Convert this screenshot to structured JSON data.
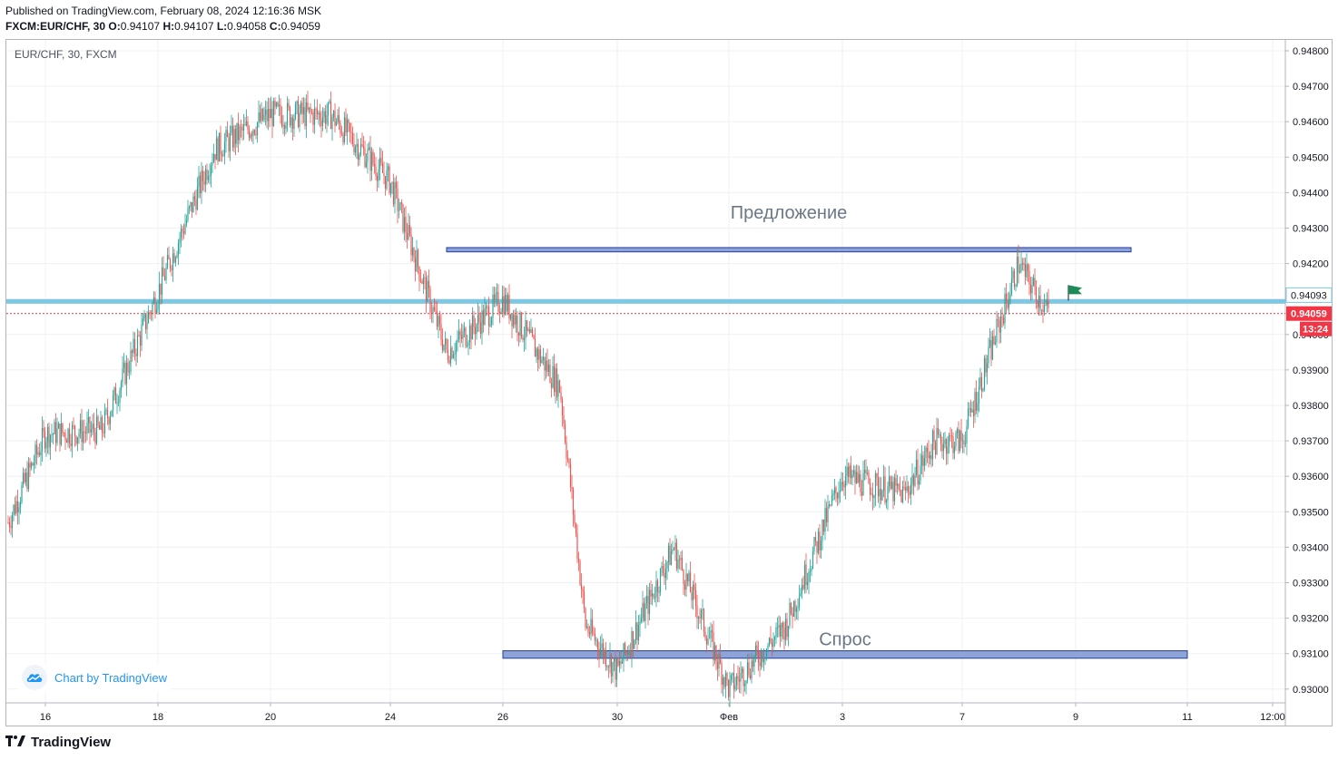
{
  "header": {
    "published_line": "Published on TradingView.com, February 08, 2024 12:16:36 MSK",
    "symbol_line": "FXCM:EUR/CHF, 30",
    "o_label": "O:",
    "o_value": "0.94107",
    "h_label": "H:",
    "h_value": "0.94107",
    "l_label": "L:",
    "l_value": "0.94058",
    "c_label": "C:",
    "c_value": "0.94059"
  },
  "legend_symbol": "EUR/CHF, 30, FXCM",
  "watermark_text": "Chart by TradingView",
  "footer_brand": "TradingView",
  "colors": {
    "up": "#26a69a",
    "down": "#ef5350",
    "zone_fill": "#8ea3d6",
    "zone_border": "#1f3c9f",
    "level_line": "#7ec8e3",
    "last_price": "#f23645",
    "flag": "#1e8a5c"
  },
  "chart_data": {
    "type": "candlestick",
    "symbol": "EUR/CHF",
    "interval": "30",
    "ylim": [
      0.9295,
      0.9483
    ],
    "y_ticks": [
      "0.94800",
      "0.94700",
      "0.94600",
      "0.94500",
      "0.94400",
      "0.94300",
      "0.94200",
      "0.94100",
      "0.94000",
      "0.93900",
      "0.93800",
      "0.93700",
      "0.93600",
      "0.93500",
      "0.93400",
      "0.93300",
      "0.93200",
      "0.93100",
      "0.93000"
    ],
    "x_ticks": [
      "16",
      "18",
      "20",
      "24",
      "26",
      "30",
      "Фев",
      "3",
      "7",
      "9",
      "11",
      "12:00"
    ],
    "path_keypoints": [
      {
        "at": "15 Jan",
        "price": 0.9347
      },
      {
        "at": "16 Jan",
        "price": 0.9372
      },
      {
        "at": "17 Jan",
        "price": 0.9373
      },
      {
        "at": "18 Jan",
        "price": 0.9412
      },
      {
        "at": "19 Jan",
        "price": 0.9452
      },
      {
        "at": "20 Jan",
        "price": 0.9462
      },
      {
        "at": "22 Jan",
        "price": 0.9462
      },
      {
        "at": "24 Jan",
        "price": 0.9443
      },
      {
        "at": "25 Jan",
        "price": 0.9395
      },
      {
        "at": "26 Jan",
        "price": 0.941
      },
      {
        "at": "27 Jan",
        "price": 0.9385
      },
      {
        "at": "29 Jan",
        "price": 0.9318
      },
      {
        "at": "30 Jan",
        "price": 0.9305
      },
      {
        "at": "31 Jan",
        "price": 0.934
      },
      {
        "at": "1 Feb",
        "price": 0.93
      },
      {
        "at": "2 Feb",
        "price": 0.9318
      },
      {
        "at": "3 Feb",
        "price": 0.936
      },
      {
        "at": "5 Feb",
        "price": 0.9355
      },
      {
        "at": "6 Feb",
        "price": 0.937
      },
      {
        "at": "7 Feb",
        "price": 0.937
      },
      {
        "at": "8 Feb",
        "price": 0.942
      },
      {
        "at": "8 Feb 12:00",
        "price": 0.9406
      }
    ],
    "zones": [
      {
        "label": "Предложение",
        "price_low": 0.94233,
        "price_high": 0.94245,
        "from": "25 Jan",
        "to": "10 Feb"
      },
      {
        "label": "Спрос",
        "price_low": 0.93087,
        "price_high": 0.93108,
        "from": "26 Jan",
        "to": "11 Feb"
      }
    ],
    "horizontal_level": {
      "price": 0.94093,
      "label": "0.94093"
    },
    "last_price": {
      "price": 0.94059,
      "label": "0.94059",
      "countdown": "13:24"
    }
  }
}
